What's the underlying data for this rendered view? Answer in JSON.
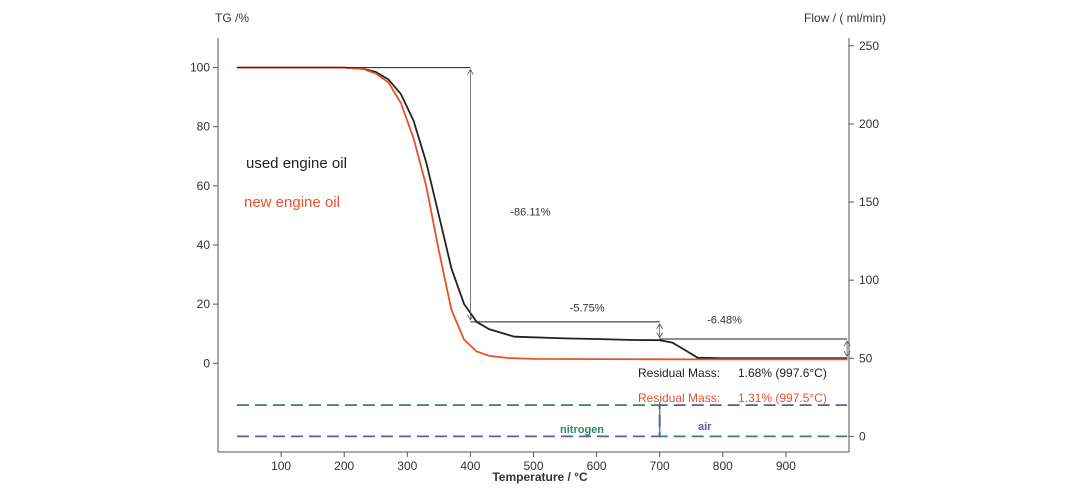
{
  "chart_data": {
    "type": "line",
    "left_axis": {
      "label": "TG /%",
      "ticks": [
        0,
        20,
        40,
        60,
        80,
        100
      ],
      "range": [
        -30,
        110
      ]
    },
    "right_axis": {
      "label": "Flow / ( ml/min)",
      "ticks": [
        0,
        50,
        100,
        150,
        200,
        250
      ],
      "range": [
        -10,
        255
      ]
    },
    "x_axis": {
      "label": "Temperature / °C",
      "ticks": [
        100,
        200,
        300,
        400,
        500,
        600,
        700,
        800,
        900
      ],
      "range": [
        0,
        1000
      ]
    },
    "series": [
      {
        "name": "used engine oil",
        "color": "#222222",
        "axis": "left",
        "x": [
          30,
          200,
          230,
          250,
          270,
          290,
          310,
          330,
          350,
          370,
          390,
          410,
          430,
          470,
          550,
          600,
          650,
          700,
          720,
          740,
          760,
          800,
          900,
          997.6
        ],
        "y": [
          100,
          100,
          99.6,
          98.5,
          96,
          91,
          82,
          68,
          50,
          32,
          20,
          14,
          11.5,
          9,
          8.4,
          8.2,
          7.9,
          7.8,
          7,
          4.5,
          1.9,
          1.7,
          1.7,
          1.68
        ]
      },
      {
        "name": "new engine oil",
        "color": "#e8512a",
        "axis": "left",
        "x": [
          30,
          200,
          230,
          250,
          270,
          290,
          310,
          330,
          350,
          370,
          390,
          410,
          430,
          460,
          500,
          600,
          700,
          800,
          900,
          997.5
        ],
        "y": [
          100,
          100,
          99.5,
          98,
          95,
          88,
          76,
          60,
          38,
          18,
          8,
          4,
          2.5,
          1.8,
          1.5,
          1.4,
          1.35,
          1.3,
          1.3,
          1.31
        ]
      },
      {
        "name": "nitrogen",
        "color": "#2e8b57",
        "axis": "right",
        "x": [
          0,
          1000
        ],
        "y": [
          20,
          0
        ]
      },
      {
        "name": "air",
        "color": "#5a5aa8",
        "axis": "right",
        "x": [
          0,
          1000
        ],
        "y": [
          0,
          20
        ]
      }
    ],
    "step_annotations": [
      {
        "label": "-86.11%",
        "x": 400,
        "from": 100,
        "to": 14
      },
      {
        "label": "-5.75%",
        "x": 700,
        "from": 14,
        "to": 8
      },
      {
        "label": "-6.48%",
        "x": 997,
        "from": 8.2,
        "to": 1.7
      }
    ],
    "residual_mass": [
      {
        "label": "Residual Mass:",
        "value": "1.68% (997.6°C)",
        "color": "#222222"
      },
      {
        "label": "Residual Mass:",
        "value": "1.31% (997.5°C)",
        "color": "#e8512a"
      }
    ],
    "legend": {
      "placement": "middle-left"
    },
    "grid": false
  }
}
